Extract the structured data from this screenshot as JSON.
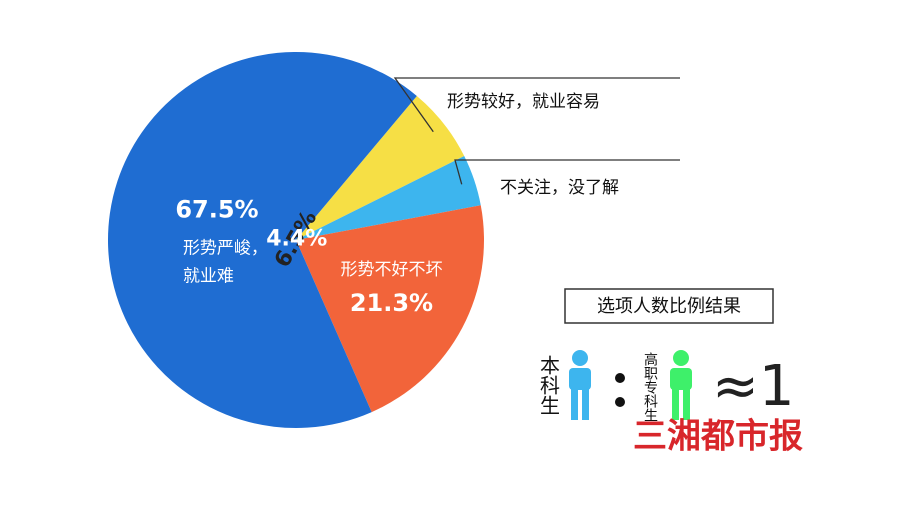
{
  "chart_data": {
    "type": "pie",
    "categories": [
      "形势较好，就业容易",
      "不关注，没了解",
      "形势不好不坏",
      "形势严峻，就业难"
    ],
    "values": [
      6.5,
      4.4,
      21.3,
      67.5
    ],
    "value_labels": [
      "6.5%",
      "4.4%",
      "21.3%",
      "67.5%"
    ],
    "colors": [
      "#f6df45",
      "#3db5ee",
      "#f2643a",
      "#1f6dd2"
    ]
  },
  "ratio_box": {
    "title": "选项人数比例结果",
    "left_label": "本科生",
    "right_label": "高职专科生",
    "ratio": "≈1"
  },
  "source": "三湘都市报"
}
